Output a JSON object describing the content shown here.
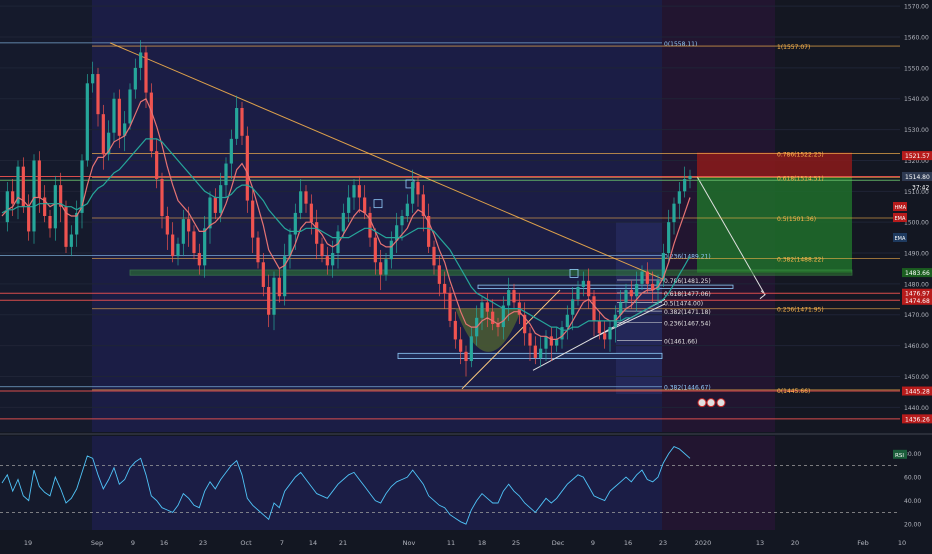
{
  "chart_data": {
    "type": "line",
    "main_pane": {
      "ylim": [
        1432,
        1572
      ],
      "y_ticks": [
        1440,
        1450,
        1460,
        1470,
        1480,
        1490,
        1500,
        1510,
        1520,
        1530,
        1540,
        1550,
        1560,
        1570
      ],
      "series": [
        {
          "kind": "price",
          "color": "#ef5350",
          "values": [
            1500,
            1510,
            1506,
            1518,
            1505,
            1497,
            1520,
            1508,
            1502,
            1498,
            1512,
            1505,
            1492,
            1496,
            1503,
            1520,
            1545,
            1548,
            1535,
            1522,
            1529,
            1540,
            1528,
            1532,
            1543,
            1550,
            1555,
            1542,
            1523,
            1514,
            1502,
            1496,
            1489,
            1493,
            1501,
            1497,
            1490,
            1486,
            1498,
            1508,
            1503,
            1512,
            1519,
            1527,
            1537,
            1528,
            1507,
            1495,
            1487,
            1479,
            1470,
            1482,
            1476,
            1489,
            1496,
            1503,
            1510,
            1506,
            1500,
            1493,
            1489,
            1486,
            1490,
            1497,
            1503,
            1508,
            1512,
            1508,
            1503,
            1495,
            1487,
            1483,
            1488,
            1494,
            1499,
            1502,
            1506,
            1513,
            1509,
            1502,
            1492,
            1486,
            1480,
            1477,
            1468,
            1462,
            1458,
            1455,
            1463,
            1469,
            1474,
            1471,
            1467,
            1466,
            1473,
            1478,
            1474,
            1470,
            1464,
            1460,
            1456,
            1459,
            1463,
            1460,
            1462,
            1466,
            1470,
            1475,
            1479,
            1481,
            1476,
            1468,
            1464,
            1462,
            1466,
            1470,
            1474,
            1478,
            1476,
            1480,
            1484,
            1480,
            1478,
            1481,
            1490,
            1500,
            1506,
            1510,
            1514,
            1515
          ]
        },
        {
          "kind": "EMA fast",
          "color": "#e57373",
          "values": [
            1502,
            1504,
            1505,
            1508,
            1507,
            1505,
            1508,
            1508,
            1507,
            1505,
            1506,
            1506,
            1503,
            1502,
            1502,
            1505,
            1512,
            1518,
            1521,
            1521,
            1523,
            1526,
            1527,
            1528,
            1531,
            1535,
            1539,
            1540,
            1536,
            1531,
            1525,
            1518,
            1512,
            1507,
            1505,
            1503,
            1500,
            1497,
            1497,
            1499,
            1500,
            1502,
            1506,
            1511,
            1517,
            1519,
            1516,
            1511,
            1505,
            1499,
            1491,
            1488,
            1485,
            1486,
            1489,
            1493,
            1498,
            1500,
            1500,
            1498,
            1496,
            1493,
            1492,
            1493,
            1496,
            1499,
            1502,
            1504,
            1503,
            1501,
            1497,
            1493,
            1492,
            1492,
            1494,
            1496,
            1498,
            1502,
            1504,
            1503,
            1500,
            1496,
            1491,
            1487,
            1481,
            1476,
            1471,
            1467,
            1466,
            1466,
            1468,
            1469,
            1468,
            1467,
            1468,
            1470,
            1471,
            1471,
            1469,
            1467,
            1464,
            1463,
            1463,
            1462,
            1462,
            1463,
            1465,
            1468,
            1471,
            1474,
            1475,
            1473,
            1471,
            1469,
            1468,
            1468,
            1470,
            1472,
            1473,
            1475,
            1477,
            1478,
            1478,
            1479,
            1482,
            1487,
            1493,
            1498,
            1503,
            1508
          ]
        },
        {
          "kind": "EMA slow",
          "color": "#26a69a",
          "values": [
            1503,
            1504,
            1504,
            1505,
            1505,
            1505,
            1505,
            1506,
            1506,
            1506,
            1506,
            1506,
            1505,
            1505,
            1504,
            1505,
            1506,
            1509,
            1511,
            1512,
            1514,
            1516,
            1517,
            1519,
            1521,
            1523,
            1525,
            1527,
            1527,
            1527,
            1526,
            1524,
            1522,
            1520,
            1518,
            1516,
            1514,
            1512,
            1510,
            1509,
            1508,
            1508,
            1508,
            1509,
            1511,
            1512,
            1512,
            1511,
            1509,
            1507,
            1504,
            1502,
            1500,
            1498,
            1497,
            1497,
            1497,
            1498,
            1498,
            1498,
            1497,
            1496,
            1495,
            1495,
            1495,
            1495,
            1496,
            1497,
            1498,
            1498,
            1497,
            1496,
            1495,
            1495,
            1495,
            1495,
            1496,
            1497,
            1498,
            1498,
            1498,
            1497,
            1495,
            1493,
            1491,
            1488,
            1485,
            1482,
            1479,
            1477,
            1476,
            1475,
            1474,
            1473,
            1472,
            1472,
            1472,
            1472,
            1471,
            1470,
            1469,
            1468,
            1467,
            1466,
            1466,
            1465,
            1465,
            1466,
            1466,
            1467,
            1468,
            1468,
            1468,
            1468,
            1468,
            1468,
            1468,
            1469,
            1469,
            1470,
            1471,
            1472,
            1473,
            1474,
            1475,
            1477,
            1480,
            1483,
            1486,
            1489
          ]
        }
      ],
      "price_labels": [
        {
          "value": 1521.57,
          "text": "1521.57",
          "color": "#b71c1c"
        },
        {
          "value": 1514.79,
          "text": "1514.79",
          "color": "#b71c1c"
        },
        {
          "value": 1514.8,
          "text": "1514.80",
          "color": "#2e3a52"
        },
        {
          "value": 1483.66,
          "text": "1483.66",
          "color": "#1b5e20"
        },
        {
          "value": 1476.97,
          "text": "1476.97",
          "color": "#b71c1c"
        },
        {
          "value": 1474.68,
          "text": "1474.68",
          "color": "#b71c1c"
        },
        {
          "value": 1445.28,
          "text": "1445.28",
          "color": "#b71c1c"
        },
        {
          "value": 1436.26,
          "text": "1436.26",
          "color": "#b71c1c"
        }
      ],
      "fib_left": {
        "color": "#90caf9",
        "levels": [
          {
            "value": 1558.11,
            "text": "0(1558.11)"
          },
          {
            "value": 1489.21,
            "text": "0.236(1489.21)"
          },
          {
            "value": 1446.67,
            "text": "0.382(1446.67)"
          }
        ]
      },
      "fib_mid": {
        "color": "#e0e0e0",
        "levels": [
          {
            "value": 1481.25,
            "text": "0.786(1481.25)"
          },
          {
            "value": 1477.06,
            "text": "0.618(1477.06)"
          },
          {
            "value": 1474.0,
            "text": "0.5(1474.00)"
          },
          {
            "value": 1471.18,
            "text": "0.382(1471.18)"
          },
          {
            "value": 1467.54,
            "text": "0.236(1467.54)"
          },
          {
            "value": 1461.66,
            "text": "0(1461.66)"
          }
        ]
      },
      "fib_right": {
        "color": "#ffb74d",
        "levels": [
          {
            "value": 1557.07,
            "text": "1(1557.07)"
          },
          {
            "value": 1522.23,
            "text": "0.786(1522.23)"
          },
          {
            "value": 1514.51,
            "text": "0.618(1514.51)"
          },
          {
            "value": 1501.36,
            "text": "0.5(1501.36)"
          },
          {
            "value": 1488.22,
            "text": "0.382(1488.22)"
          },
          {
            "value": 1471.95,
            "text": "0.236(1471.95)"
          },
          {
            "value": 1445.66,
            "text": "0(1445.66)"
          }
        ]
      },
      "indicator_tags": [
        {
          "text": "HMA",
          "color": "#b71c1c"
        },
        {
          "text": "EMA",
          "color": "#b71c1c"
        },
        {
          "text": "EMA",
          "color": "#1e3a5f"
        }
      ],
      "price_label_small": "37:42"
    },
    "rsi_pane": {
      "label": "RSI",
      "ylim": [
        15,
        95
      ],
      "y_ticks": [
        20,
        40,
        60,
        80
      ],
      "y_tick_labels": [
        "20.00",
        "40.00",
        "60.00",
        "80.00"
      ],
      "bands": [
        70,
        30
      ],
      "color": "#4fc3f7",
      "values": [
        55,
        62,
        48,
        58,
        44,
        40,
        66,
        52,
        47,
        44,
        60,
        50,
        38,
        42,
        50,
        64,
        78,
        76,
        62,
        50,
        58,
        68,
        54,
        58,
        68,
        73,
        76,
        62,
        44,
        40,
        34,
        32,
        30,
        36,
        46,
        42,
        36,
        34,
        48,
        56,
        50,
        58,
        64,
        70,
        74,
        62,
        42,
        36,
        32,
        28,
        24,
        38,
        34,
        48,
        54,
        60,
        64,
        58,
        52,
        46,
        44,
        42,
        48,
        54,
        58,
        62,
        64,
        58,
        52,
        46,
        40,
        38,
        46,
        52,
        56,
        58,
        60,
        66,
        60,
        54,
        44,
        40,
        36,
        34,
        28,
        25,
        22,
        20,
        32,
        40,
        46,
        42,
        38,
        38,
        48,
        54,
        48,
        44,
        38,
        34,
        30,
        36,
        42,
        38,
        42,
        48,
        54,
        58,
        62,
        60,
        52,
        44,
        42,
        40,
        48,
        52,
        56,
        60,
        56,
        62,
        66,
        58,
        56,
        60,
        72,
        80,
        86,
        84,
        80,
        76
      ]
    },
    "x_ticks": [
      "19",
      "Sep",
      "9",
      "16",
      "23",
      "Oct",
      "7",
      "14",
      "21",
      "Nov",
      "11",
      "18",
      "25",
      "Dec",
      "9",
      "16",
      "23",
      "2020",
      "13",
      "20",
      "Feb",
      "10"
    ]
  }
}
